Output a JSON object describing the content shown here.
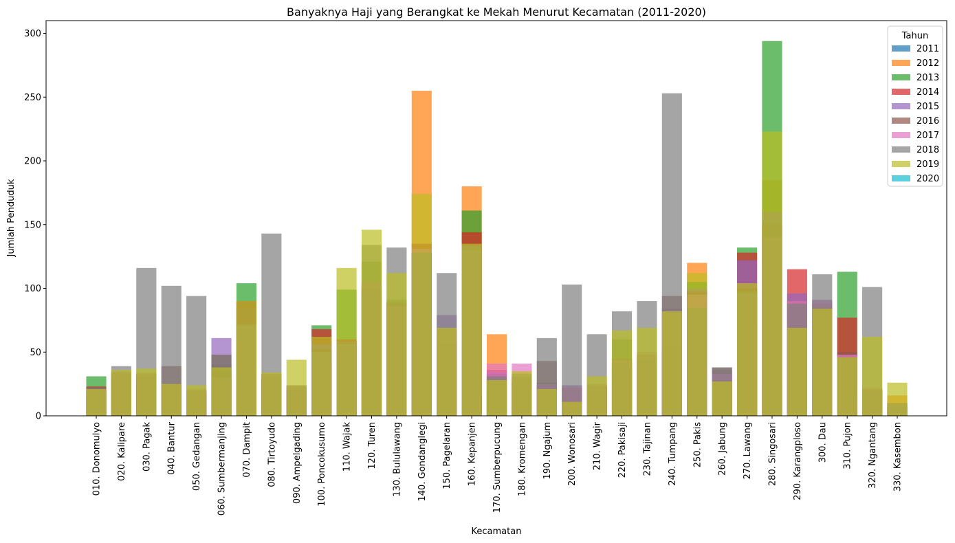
{
  "chart_data": {
    "type": "bar",
    "title": "Banyaknya Haji yang Berangkat ke Mekah Menurut Kecamatan (2011-2020)",
    "xlabel": "Kecamatan",
    "ylabel": "Jumlah Penduduk",
    "ylim": [
      0,
      310
    ],
    "yticks": [
      0,
      50,
      100,
      150,
      200,
      250,
      300
    ],
    "grid": false,
    "legend": {
      "title": "Tahun",
      "placement": "top-right"
    },
    "bar_alpha": 0.7,
    "categories": [
      "010. Donomulyo",
      "020. Kalipare",
      "030. Pagak",
      "040. Bantur",
      "050. Gedangan",
      "060. Sumbermanjing",
      "070. Dampit",
      "080. Tirtoyudo",
      "090. Ampelgading",
      "100. Poncokusumo",
      "110. Wajak",
      "120. Turen",
      "130. Bululawang",
      "140. Gondanglegi",
      "150. Pagelaran",
      "160. Kepanjen",
      "170. Sumberpucung",
      "180. Kromengan",
      "190. Ngajum",
      "200. Wonosari",
      "210. Wagir",
      "220. Pakisaji",
      "230. Tajinan",
      "240. Tumpang",
      "250. Pakis",
      "260. Jabung",
      "270. Lawang",
      "280. Singosari",
      "290. Karangploso",
      "300. Dau",
      "310. Pujon",
      "320. Ngantang",
      "330. Kasembon"
    ],
    "series": [
      {
        "name": "2011",
        "color": "#1f77b4",
        "values": [
          20,
          32,
          30,
          23,
          18,
          40,
          22,
          30,
          20,
          36,
          52,
          95,
          85,
          25,
          43,
          16,
          22,
          28,
          18,
          10,
          20,
          35,
          40,
          50,
          57,
          25,
          70,
          25,
          65,
          80,
          15,
          20,
          6
        ]
      },
      {
        "name": "2012",
        "color": "#ff7f0e",
        "values": [
          18,
          30,
          28,
          20,
          15,
          24,
          48,
          28,
          18,
          42,
          55,
          96,
          88,
          255,
          45,
          180,
          64,
          25,
          20,
          10,
          22,
          38,
          38,
          48,
          120,
          25,
          98,
          185,
          67,
          82,
          46,
          18,
          16
        ]
      },
      {
        "name": "2013",
        "color": "#2ca02c",
        "values": [
          31,
          32,
          31,
          24,
          20,
          30,
          104,
          30,
          21,
          71,
          99,
          121,
          91,
          128,
          57,
          161,
          28,
          27,
          26,
          12,
          23,
          60,
          44,
          55,
          105,
          27,
          132,
          294,
          68,
          84,
          113,
          20,
          7
        ]
      },
      {
        "name": "2014",
        "color": "#d62728",
        "values": [
          23,
          33,
          32,
          25,
          19,
          35,
          90,
          31,
          22,
          68,
          60,
          105,
          88,
          135,
          60,
          144,
          36,
          28,
          22,
          11,
          22,
          45,
          48,
          82,
          98,
          28,
          128,
          150,
          115,
          85,
          77,
          21,
          8
        ]
      },
      {
        "name": "2015",
        "color": "#9467bd",
        "values": [
          20,
          33,
          30,
          25,
          19,
          61,
          85,
          32,
          21,
          56,
          58,
          99,
          89,
          128,
          79,
          134,
          34,
          30,
          24,
          24,
          23,
          42,
          46,
          84,
          100,
          36,
          122,
          160,
          96,
          91,
          48,
          20,
          9
        ]
      },
      {
        "name": "2016",
        "color": "#8c564b",
        "values": [
          22,
          34,
          33,
          39,
          20,
          48,
          89,
          33,
          23,
          52,
          57,
          100,
          89,
          127,
          68,
          133,
          33,
          31,
          43,
          22,
          24,
          41,
          45,
          94,
          97,
          38,
          100,
          150,
          90,
          88,
          50,
          21,
          10
        ]
      },
      {
        "name": "2017",
        "color": "#e377c2",
        "values": [
          21,
          35,
          34,
          25,
          21,
          30,
          71,
          33,
          24,
          50,
          56,
          105,
          86,
          131,
          68,
          130,
          41,
          41,
          25,
          23,
          25,
          44,
          50,
          82,
          95,
          33,
          96,
          140,
          90,
          90,
          48,
          22,
          10
        ]
      },
      {
        "name": "2018",
        "color": "#7f7f7f",
        "values": [
          22,
          39,
          116,
          102,
          94,
          48,
          72,
          143,
          24,
          50,
          57,
          134,
          132,
          128,
          112,
          133,
          31,
          33,
          61,
          103,
          64,
          82,
          90,
          253,
          85,
          38,
          98,
          154,
          88,
          111,
          46,
          101,
          10
        ]
      },
      {
        "name": "2019",
        "color": "#bcbd22",
        "values": [
          21,
          36,
          37,
          25,
          24,
          38,
          90,
          34,
          44,
          62,
          116,
          146,
          112,
          174,
          69,
          135,
          28,
          35,
          21,
          11,
          31,
          67,
          69,
          82,
          112,
          27,
          104,
          223,
          69,
          84,
          46,
          62,
          26
        ]
      },
      {
        "name": "2020",
        "color": "#17becf",
        "values": [
          0,
          0,
          0,
          0,
          0,
          0,
          0,
          0,
          0,
          0,
          0,
          0,
          0,
          0,
          0,
          0,
          0,
          0,
          0,
          0,
          0,
          0,
          0,
          0,
          0,
          0,
          0,
          0,
          0,
          0,
          0,
          0,
          0
        ]
      }
    ]
  }
}
